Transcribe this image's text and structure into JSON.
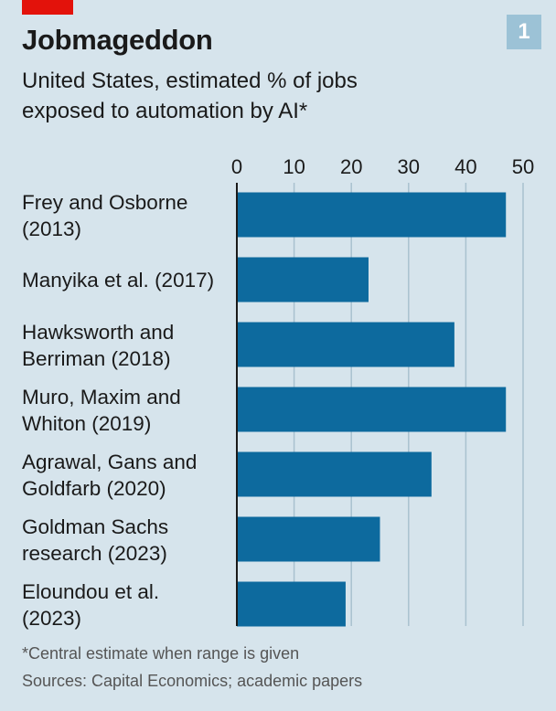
{
  "header": {
    "title": "Jobmageddon",
    "subtitle": "United States, estimated % of jobs exposed to automation by AI*",
    "badge": "1"
  },
  "colors": {
    "background": "#d6e4ec",
    "bar": "#0d6a9e",
    "accent_red": "#e3120b",
    "badge": "#9cc2d6",
    "gridline": "#a9c1cf"
  },
  "chart_data": {
    "type": "bar",
    "orientation": "horizontal",
    "categories": [
      [
        "Frey and Osborne",
        "(2013)"
      ],
      [
        "Manyika et al. (2017)"
      ],
      [
        "Hawksworth and",
        "Berriman (2018)"
      ],
      [
        "Muro, Maxim and",
        "Whiton (2019)"
      ],
      [
        "Agrawal, Gans and",
        "Goldfarb (2020)"
      ],
      [
        "Goldman Sachs",
        "research (2023)"
      ],
      [
        "Eloundou et al.",
        "(2023)"
      ]
    ],
    "values": [
      47,
      23,
      38,
      47,
      34,
      25,
      19
    ],
    "xlim": [
      0,
      50
    ],
    "xticks": [
      "0",
      "10",
      "20",
      "30",
      "40",
      "50"
    ],
    "grid": true,
    "axis_position": "top",
    "legend": "none"
  },
  "footer": {
    "note": "*Central estimate when range is given",
    "source": "Sources: Capital Economics; academic papers"
  }
}
